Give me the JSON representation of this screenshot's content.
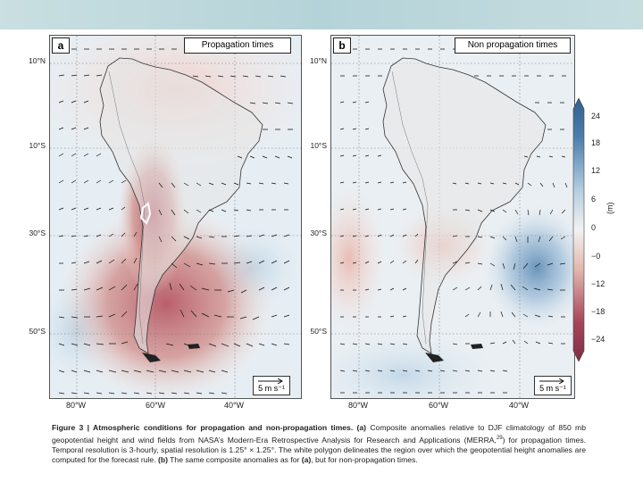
{
  "panel_a": {
    "label": "a",
    "title": "Propagation times",
    "scale": "5 m s⁻¹"
  },
  "panel_b": {
    "label": "b",
    "title": "Non propagation times",
    "scale": "5 m s⁻¹"
  },
  "lat_labels": [
    "10°N",
    "10°S",
    "30°S",
    "50°S"
  ],
  "lon_labels_a": [
    "80°W",
    "60°W",
    "40°W"
  ],
  "lon_labels_b": [
    "80°W",
    "60°W",
    "40°W"
  ],
  "colorbar": {
    "ticks": [
      "24",
      "18",
      "12",
      "6",
      "0",
      "−0",
      "−12",
      "−18",
      "−24"
    ],
    "unit": "(m)",
    "colors": {
      "high": "#4d7fad",
      "mid": "#f2f2f2",
      "low": "#a8455a"
    }
  },
  "caption": {
    "bold": "Figure 3 | Atmospheric conditions for propagation and non-propagation times.",
    "a_label": "(a)",
    "text1": " Composite anomalies relative to DJF climatology of 850 mb geopotential height and wind fields from NASA’s Modern-Era Retrospective Analysis for Research and Applications (MERRA,",
    "ref": "29",
    "text2": ") for propagation times. Temporal resolution is 3-hourly, spatial resolution is 1.25° × 1.25°. The white polygon delineates the region over which the geopotential height anomalies are computed for the forecast rule. ",
    "b_label": "(b)",
    "text3": " The same composite anomalies as for ",
    "a_ref": "(a)",
    "text4": ", but for non-propagation times."
  }
}
